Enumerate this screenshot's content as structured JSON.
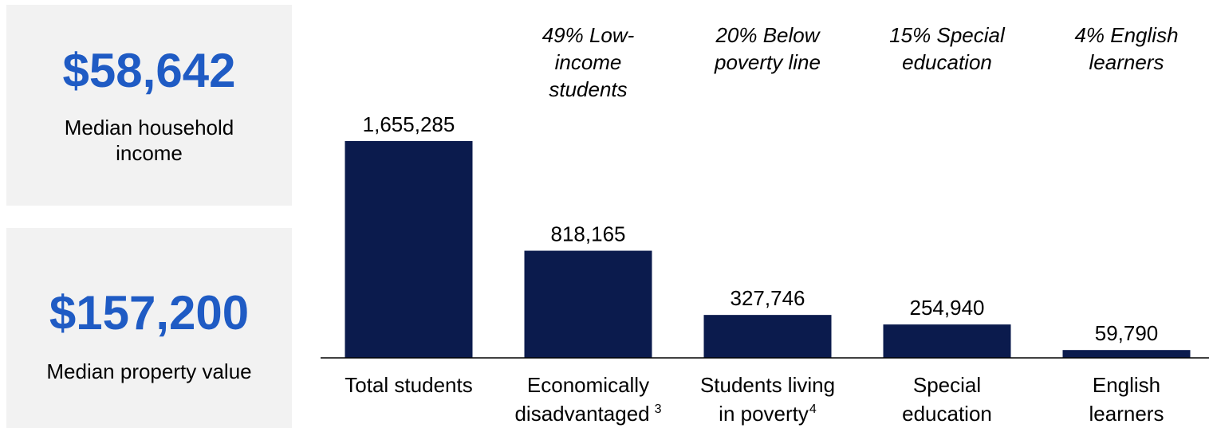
{
  "colors": {
    "bar": "#0b1b4d",
    "stat_value": "#1f5bc4",
    "card_bg": "#f2f2f2",
    "axis": "#000000"
  },
  "stats": [
    {
      "value": "$58,642",
      "label": "Median household income"
    },
    {
      "value": "$157,200",
      "label": "Median property value"
    }
  ],
  "chart_data": {
    "type": "bar",
    "categories": [
      {
        "lines": [
          "Total students"
        ],
        "sup": ""
      },
      {
        "lines": [
          "Economically",
          "disadvantaged"
        ],
        "sup": "3"
      },
      {
        "lines": [
          "Students living",
          "in poverty"
        ],
        "sup": "4"
      },
      {
        "lines": [
          "Special",
          "education"
        ],
        "sup": ""
      },
      {
        "lines": [
          "English",
          "learners"
        ],
        "sup": ""
      }
    ],
    "values": [
      1655285,
      818165,
      327746,
      254940,
      59790
    ],
    "data_labels": [
      "1,655,285",
      "818,165",
      "327,746",
      "254,940",
      "59,790"
    ],
    "annotations": [
      [],
      [
        "49% Low-",
        "income",
        "students"
      ],
      [
        "20% Below",
        "poverty line"
      ],
      [
        "15% Special",
        "education"
      ],
      [
        "4% English",
        "learners"
      ]
    ],
    "title": "",
    "xlabel": "",
    "ylabel": ""
  }
}
